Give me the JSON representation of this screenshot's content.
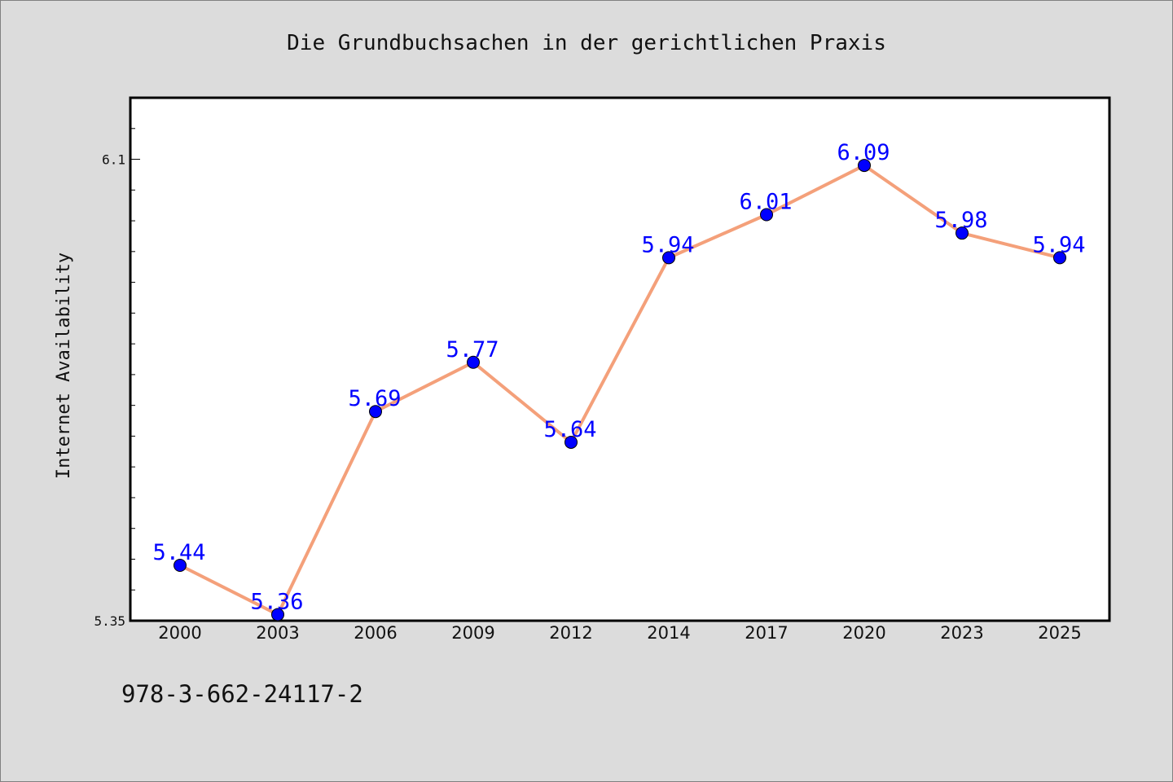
{
  "chart_data": {
    "type": "line",
    "title": "Die Grundbuchsachen in der gerichtlichen Praxis",
    "xlabel": "",
    "ylabel": "Internet Availability",
    "x": [
      "2000",
      "2003",
      "2006",
      "2009",
      "2012",
      "2014",
      "2017",
      "2020",
      "2023",
      "2025"
    ],
    "series": [
      {
        "values": [
          5.44,
          5.36,
          5.69,
          5.77,
          5.64,
          5.94,
          6.01,
          6.09,
          5.98,
          5.94
        ],
        "data_labels": [
          "5.44",
          "5.36",
          "5.69",
          "5.77",
          "5.64",
          "5.94",
          "6.01",
          "6.09",
          "5.98",
          "5.94"
        ]
      }
    ],
    "ylim": [
      5.35,
      6.2
    ],
    "y_tick_labels": [
      {
        "value": 5.35,
        "label": "5.35"
      },
      {
        "value": 6.1,
        "label": "6.1"
      }
    ],
    "grid": false,
    "line_color": "#f4a07a",
    "marker_color": "#0000ff",
    "label_color": "#0000ff"
  },
  "footer": {
    "isbn": "978-3-662-24117-2"
  }
}
